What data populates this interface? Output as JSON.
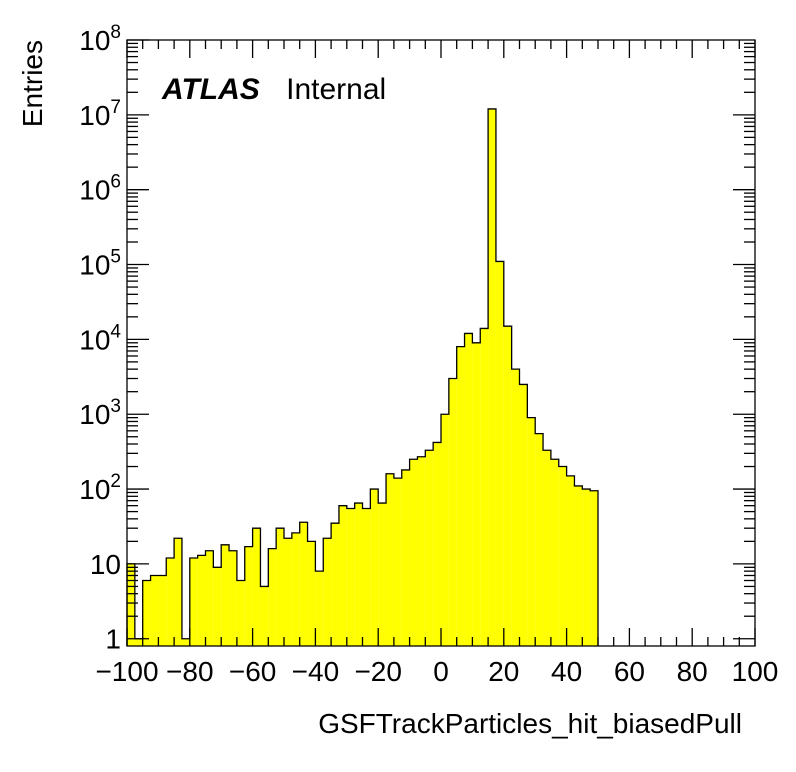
{
  "chart_data": {
    "type": "histogram",
    "scale_y": "log",
    "bin_width": 2.5,
    "x_range": [
      -100,
      100
    ],
    "y_range": [
      0.8,
      100000000
    ],
    "xlabel": "GSFTrackParticles_hit_biasedPull",
    "ylabel": "Entries",
    "annotation": {
      "bold": "ATLAS",
      "normal": "Internal"
    },
    "x_tick_labels": [
      "−100",
      "−80",
      "−60",
      "−40",
      "−20",
      "0",
      "20",
      "40",
      "60",
      "80",
      "100"
    ],
    "x_tick_values": [
      -100,
      -80,
      -60,
      -40,
      -20,
      0,
      20,
      40,
      60,
      80,
      100
    ],
    "y_tick_values": [
      1,
      10,
      100,
      1000,
      10000,
      100000,
      1000000,
      10000000,
      100000000
    ],
    "y_tick_labels": [
      {
        "base": "1",
        "exp": ""
      },
      {
        "base": "10",
        "exp": ""
      },
      {
        "base": "10",
        "exp": "2"
      },
      {
        "base": "10",
        "exp": "3"
      },
      {
        "base": "10",
        "exp": "4"
      },
      {
        "base": "10",
        "exp": "5"
      },
      {
        "base": "10",
        "exp": "6"
      },
      {
        "base": "10",
        "exp": "7"
      },
      {
        "base": "10",
        "exp": "8"
      }
    ],
    "fill_color": "#ffff00",
    "line_color": "#000000",
    "bins": [
      {
        "x0": -100.0,
        "y": 10
      },
      {
        "x0": -97.5,
        "y": 1
      },
      {
        "x0": -95.0,
        "y": 6
      },
      {
        "x0": -92.5,
        "y": 7
      },
      {
        "x0": -90.0,
        "y": 7
      },
      {
        "x0": -87.5,
        "y": 12
      },
      {
        "x0": -85.0,
        "y": 22
      },
      {
        "x0": -82.5,
        "y": 1
      },
      {
        "x0": -80.0,
        "y": 12
      },
      {
        "x0": -77.5,
        "y": 13
      },
      {
        "x0": -75.0,
        "y": 15
      },
      {
        "x0": -72.5,
        "y": 9
      },
      {
        "x0": -70.0,
        "y": 18
      },
      {
        "x0": -67.5,
        "y": 15
      },
      {
        "x0": -65.0,
        "y": 6
      },
      {
        "x0": -62.5,
        "y": 17
      },
      {
        "x0": -60.0,
        "y": 30
      },
      {
        "x0": -57.5,
        "y": 5
      },
      {
        "x0": -55.0,
        "y": 16
      },
      {
        "x0": -52.5,
        "y": 30
      },
      {
        "x0": -50.0,
        "y": 22
      },
      {
        "x0": -47.5,
        "y": 26
      },
      {
        "x0": -45.0,
        "y": 36
      },
      {
        "x0": -42.5,
        "y": 20
      },
      {
        "x0": -40.0,
        "y": 8
      },
      {
        "x0": -37.5,
        "y": 22
      },
      {
        "x0": -35.0,
        "y": 35
      },
      {
        "x0": -32.5,
        "y": 60
      },
      {
        "x0": -30.0,
        "y": 55
      },
      {
        "x0": -27.5,
        "y": 65
      },
      {
        "x0": -25.0,
        "y": 55
      },
      {
        "x0": -22.5,
        "y": 100
      },
      {
        "x0": -20.0,
        "y": 65
      },
      {
        "x0": -17.5,
        "y": 160
      },
      {
        "x0": -15.0,
        "y": 140
      },
      {
        "x0": -12.5,
        "y": 180
      },
      {
        "x0": -10.0,
        "y": 250
      },
      {
        "x0": -7.5,
        "y": 270
      },
      {
        "x0": -5.0,
        "y": 330
      },
      {
        "x0": -2.5,
        "y": 420
      },
      {
        "x0": 0.0,
        "y": 1000
      },
      {
        "x0": 2.5,
        "y": 3000
      },
      {
        "x0": 5.0,
        "y": 8000
      },
      {
        "x0": 7.5,
        "y": 12000
      },
      {
        "x0": 10.0,
        "y": 9000
      },
      {
        "x0": 12.5,
        "y": 14000
      },
      {
        "x0": 15.0,
        "y": 12000000
      },
      {
        "x0": 17.5,
        "y": 110000
      },
      {
        "x0": 20.0,
        "y": 15000
      },
      {
        "x0": 22.5,
        "y": 4000
      },
      {
        "x0": 25.0,
        "y": 2500
      },
      {
        "x0": 27.5,
        "y": 900
      },
      {
        "x0": 30.0,
        "y": 550
      },
      {
        "x0": 32.5,
        "y": 330
      },
      {
        "x0": 35.0,
        "y": 250
      },
      {
        "x0": 37.5,
        "y": 200
      },
      {
        "x0": 40.0,
        "y": 150
      },
      {
        "x0": 42.5,
        "y": 110
      },
      {
        "x0": 45.0,
        "y": 100
      },
      {
        "x0": 47.5,
        "y": 95
      }
    ]
  }
}
